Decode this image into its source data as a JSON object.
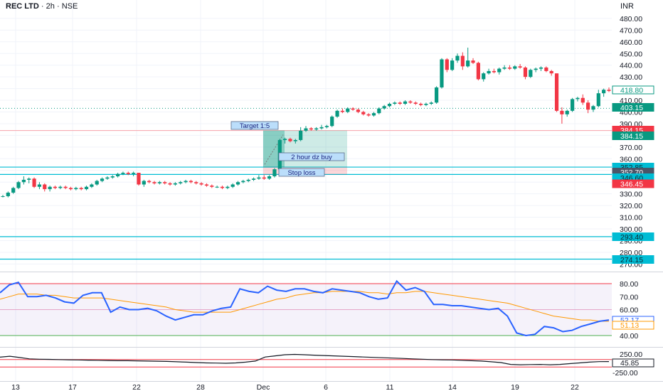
{
  "header": {
    "symbol": "REC LTD",
    "timeframe": "2h",
    "exchange": "NSE",
    "currency": "INR"
  },
  "colors": {
    "up": "#089981",
    "down": "#f23645",
    "rsi_line": "#2962ff",
    "rsi_ma": "#ff9800",
    "cyan": "#00bcd4",
    "pink_line": "#f7a1a9"
  },
  "chart_data": [
    {
      "type": "candlestick",
      "title": "",
      "y_axis": {
        "range": [
          268,
          485
        ],
        "ticks": [
          480,
          470,
          460,
          450,
          440,
          430,
          420,
          410,
          400,
          390,
          380,
          370,
          360,
          350,
          340,
          330,
          320,
          310,
          300,
          290,
          280,
          270
        ],
        "tick_labels": [
          "480.00",
          "470.00",
          "460.00",
          "450.00",
          "440.00",
          "430.00",
          "420.00",
          "410.00",
          "400.00",
          "390.00",
          "380.00",
          "370.00",
          "360.00",
          "350.00",
          "340.00",
          "330.00",
          "320.00",
          "310.00",
          "300.00",
          "290.00",
          "280.00",
          "270.00"
        ]
      },
      "x_axis": {
        "tick_labels": [
          "13",
          "17",
          "22",
          "28",
          "Dec",
          "6",
          "11",
          "14",
          "19",
          "22"
        ]
      },
      "candles": [
        [
          328,
          329,
          327,
          328
        ],
        [
          328,
          332,
          327,
          331
        ],
        [
          331,
          336,
          330,
          335
        ],
        [
          335,
          341,
          334,
          340
        ],
        [
          340,
          345,
          338,
          342
        ],
        [
          342,
          344,
          339,
          343
        ],
        [
          343,
          344,
          335,
          336
        ],
        [
          336,
          340,
          334,
          338
        ],
        [
          338,
          339,
          332,
          334
        ],
        [
          334,
          337,
          332,
          336
        ],
        [
          336,
          337,
          334,
          335
        ],
        [
          335,
          337,
          334,
          336
        ],
        [
          336,
          337,
          334,
          335
        ],
        [
          335,
          336,
          333,
          334
        ],
        [
          334,
          336,
          333,
          335
        ],
        [
          335,
          336,
          333,
          334
        ],
        [
          334,
          337,
          333,
          336
        ],
        [
          336,
          339,
          335,
          338
        ],
        [
          338,
          342,
          337,
          341
        ],
        [
          341,
          344,
          340,
          343
        ],
        [
          343,
          345,
          342,
          344
        ],
        [
          344,
          346,
          343,
          345
        ],
        [
          345,
          348,
          344,
          347
        ],
        [
          347,
          349,
          346,
          348
        ],
        [
          348,
          349,
          346,
          347
        ],
        [
          347,
          349,
          345,
          348
        ],
        [
          348,
          348,
          337,
          338
        ],
        [
          338,
          342,
          336,
          341
        ],
        [
          341,
          342,
          339,
          340
        ],
        [
          340,
          341,
          338,
          339
        ],
        [
          339,
          341,
          338,
          340
        ],
        [
          340,
          341,
          338,
          339
        ],
        [
          339,
          340,
          337,
          338
        ],
        [
          338,
          340,
          337,
          339
        ],
        [
          339,
          341,
          338,
          340
        ],
        [
          340,
          342,
          339,
          341
        ],
        [
          341,
          342,
          339,
          340
        ],
        [
          340,
          341,
          338,
          339
        ],
        [
          339,
          340,
          337,
          338
        ],
        [
          338,
          339,
          336,
          337
        ],
        [
          337,
          338,
          335,
          336
        ],
        [
          336,
          337,
          335,
          336
        ],
        [
          336,
          337,
          334,
          335
        ],
        [
          335,
          337,
          334,
          336
        ],
        [
          336,
          339,
          335,
          338
        ],
        [
          338,
          341,
          337,
          340
        ],
        [
          340,
          342,
          339,
          341
        ],
        [
          341,
          343,
          340,
          342
        ],
        [
          342,
          344,
          341,
          343
        ],
        [
          343,
          346,
          342,
          344
        ],
        [
          344,
          346,
          342,
          343
        ],
        [
          343,
          346,
          342,
          345
        ],
        [
          345,
          352,
          344,
          351
        ],
        [
          351,
          377,
          350,
          376
        ],
        [
          376,
          378,
          373,
          377
        ],
        [
          377,
          378,
          374,
          375
        ],
        [
          375,
          377,
          373,
          376
        ],
        [
          376,
          387,
          375,
          384
        ],
        [
          384,
          388,
          383,
          386
        ],
        [
          386,
          387,
          384,
          385
        ],
        [
          385,
          387,
          384,
          386
        ],
        [
          386,
          389,
          385,
          387
        ],
        [
          387,
          389,
          386,
          388
        ],
        [
          388,
          397,
          387,
          396
        ],
        [
          396,
          402,
          395,
          401
        ],
        [
          401,
          403,
          399,
          400
        ],
        [
          400,
          404,
          399,
          403
        ],
        [
          403,
          404,
          401,
          402
        ],
        [
          402,
          403,
          399,
          400
        ],
        [
          400,
          401,
          397,
          398
        ],
        [
          398,
          399,
          396,
          397
        ],
        [
          397,
          400,
          396,
          399
        ],
        [
          399,
          404,
          398,
          403
        ],
        [
          403,
          406,
          402,
          405
        ],
        [
          405,
          408,
          404,
          407
        ],
        [
          407,
          409,
          406,
          408
        ],
        [
          408,
          409,
          406,
          407
        ],
        [
          407,
          410,
          406,
          409
        ],
        [
          409,
          410,
          407,
          408
        ],
        [
          408,
          409,
          406,
          407
        ],
        [
          407,
          408,
          405,
          406
        ],
        [
          406,
          408,
          405,
          407
        ],
        [
          407,
          409,
          406,
          408
        ],
        [
          408,
          422,
          407,
          421
        ],
        [
          421,
          446,
          420,
          445
        ],
        [
          445,
          446,
          434,
          436
        ],
        [
          436,
          446,
          435,
          444
        ],
        [
          444,
          450,
          442,
          448
        ],
        [
          448,
          451,
          436,
          439
        ],
        [
          439,
          455,
          438,
          444
        ],
        [
          444,
          446,
          441,
          442
        ],
        [
          442,
          443,
          427,
          428
        ],
        [
          428,
          434,
          426,
          433
        ],
        [
          433,
          437,
          432,
          435
        ],
        [
          435,
          437,
          433,
          434
        ],
        [
          434,
          438,
          432,
          437
        ],
        [
          437,
          440,
          436,
          438
        ],
        [
          438,
          440,
          436,
          437
        ],
        [
          437,
          440,
          436,
          439
        ],
        [
          439,
          441,
          437,
          438
        ],
        [
          438,
          439,
          428,
          430
        ],
        [
          430,
          437,
          429,
          436
        ],
        [
          436,
          438,
          434,
          437
        ],
        [
          437,
          439,
          435,
          438
        ],
        [
          438,
          439,
          434,
          435
        ],
        [
          435,
          436,
          431,
          433
        ],
        [
          433,
          433,
          400,
          401
        ],
        [
          401,
          404,
          390,
          398
        ],
        [
          398,
          402,
          396,
          401
        ],
        [
          401,
          412,
          400,
          411
        ],
        [
          411,
          413,
          409,
          412
        ],
        [
          412,
          415,
          406,
          408
        ],
        [
          408,
          410,
          399,
          402
        ],
        [
          402,
          406,
          400,
          405
        ],
        [
          405,
          419,
          404,
          416
        ],
        [
          416,
          420,
          413,
          419
        ],
        [
          419,
          421,
          417,
          418
        ]
      ],
      "price_labels": [
        {
          "text": "418.80",
          "role": "last",
          "style": "outline"
        },
        {
          "text": "403.15",
          "role": "level",
          "style": "green"
        },
        {
          "text": "384.15",
          "role": "target",
          "style": "red"
        },
        {
          "text": "384.15",
          "role": "target",
          "style": "green"
        },
        {
          "text": "352.85",
          "role": "level",
          "style": "cyan"
        },
        {
          "text": "352.70",
          "role": "entry",
          "style": "gray"
        },
        {
          "text": "346.60",
          "role": "level",
          "style": "cyan"
        },
        {
          "text": "346.45",
          "role": "stop",
          "style": "red"
        },
        {
          "text": "293.40",
          "role": "level",
          "style": "cyan"
        },
        {
          "text": "274.15",
          "role": "level",
          "style": "cyan"
        }
      ],
      "annotations": {
        "target_label": "Target 1:5",
        "zone_label": "2 hour dz buy",
        "stop_label": "Stop loss"
      },
      "levels": {
        "target": 384.15,
        "entry": 352.7,
        "stop": 346.45,
        "cyan_levels": [
          352.85,
          346.6,
          293.4,
          274.15
        ],
        "dotted_level": 403.15
      }
    },
    {
      "type": "line",
      "title": "",
      "y_axis": {
        "range": [
          36,
          84
        ],
        "tick_labels": [
          "80.00",
          "70.00",
          "60.00",
          "50.00",
          "40.00"
        ],
        "ticks": [
          80,
          70,
          60,
          50,
          40
        ]
      },
      "bands": {
        "upper": 80,
        "middle": 60,
        "lower": 40
      },
      "series": [
        {
          "name": "",
          "values": [
            73,
            79,
            81,
            70,
            70,
            71,
            69,
            66,
            65,
            71,
            73,
            73,
            58,
            62,
            60,
            60,
            61,
            59,
            55,
            52,
            54,
            56,
            56,
            59,
            61,
            62,
            76,
            74,
            73,
            78,
            75,
            74,
            76,
            76,
            74,
            73,
            76,
            75,
            74,
            73,
            70,
            68,
            69,
            82,
            75,
            77,
            74,
            64,
            64,
            63,
            63,
            62,
            61,
            60,
            61,
            55,
            42,
            40,
            41,
            47,
            46,
            43,
            44,
            47,
            49,
            51,
            52
          ]
        },
        {
          "name": "",
          "values": [
            68,
            70,
            72,
            72,
            72,
            71,
            71,
            70,
            69,
            69,
            69,
            69,
            68,
            67,
            66,
            65,
            64,
            63,
            62,
            60,
            59,
            58,
            58,
            58,
            58,
            58,
            60,
            62,
            64,
            66,
            68,
            69,
            71,
            72,
            73,
            73,
            74,
            74,
            74,
            74,
            73,
            73,
            72,
            73,
            73,
            74,
            74,
            73,
            72,
            71,
            70,
            69,
            68,
            67,
            66,
            65,
            63,
            61,
            59,
            57,
            55,
            54,
            53,
            52,
            52,
            51,
            51
          ]
        }
      ],
      "value_labels": [
        "52.17",
        "51.13"
      ]
    },
    {
      "type": "line",
      "title": "",
      "y_axis": {
        "tick_labels": [
          "250.00",
          "-250.00"
        ],
        "ticks": [
          250,
          -250
        ]
      },
      "series": [
        {
          "name": "",
          "values": [
            165,
            190,
            155,
            120,
            110,
            105,
            100,
            95,
            90,
            85,
            80,
            75,
            70,
            70,
            65,
            60,
            55,
            50,
            40,
            30,
            20,
            10,
            5,
            0,
            10,
            30,
            60,
            170,
            200,
            230,
            240,
            230,
            220,
            210,
            200,
            190,
            180,
            170,
            160,
            150,
            140,
            130,
            120,
            110,
            100,
            95,
            90,
            80,
            70,
            60,
            40,
            20,
            -30,
            -40,
            -35,
            -30,
            -40,
            -30,
            -10,
            10,
            30,
            45,
            46
          ]
        }
      ],
      "value_labels": [
        "45.85"
      ]
    }
  ]
}
